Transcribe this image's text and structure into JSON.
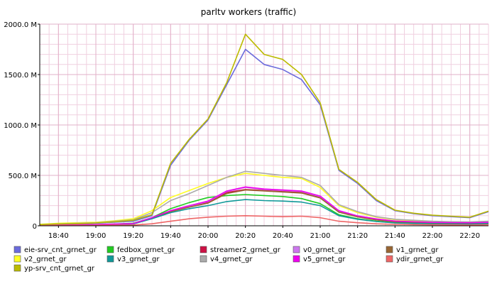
{
  "chart_data": {
    "type": "line",
    "title": "parltv workers (traffic)",
    "xlabel": "",
    "ylabel": "",
    "x_unit": "time (HH:MM)",
    "x": [
      "18:30",
      "18:40",
      "18:50",
      "19:00",
      "19:10",
      "19:20",
      "19:30",
      "19:40",
      "19:50",
      "20:00",
      "20:10",
      "20:20",
      "20:30",
      "20:40",
      "20:50",
      "21:00",
      "21:10",
      "21:20",
      "21:30",
      "21:40",
      "21:50",
      "22:00",
      "22:10",
      "22:20",
      "22:30"
    ],
    "x_tick_labels": [
      "18:40",
      "19:00",
      "19:20",
      "19:40",
      "20:00",
      "20:20",
      "20:40",
      "21:00",
      "21:20",
      "21:40",
      "22:00",
      "22:20"
    ],
    "ylim": [
      0,
      2000
    ],
    "y_unit": "M",
    "y_tick_labels": [
      "0",
      "500.0 M",
      "1000.0 M",
      "1500.0 M",
      "2000.0 M"
    ],
    "grid": true,
    "legend_position": "bottom",
    "series": [
      {
        "name": "eie-srv_cnt_grnet_gr",
        "color": "#6b6bdc",
        "values": [
          10,
          15,
          20,
          25,
          35,
          45,
          100,
          600,
          850,
          1050,
          1400,
          1750,
          1600,
          1550,
          1450,
          1200,
          550,
          420,
          250,
          150,
          120,
          100,
          90,
          80,
          140
        ]
      },
      {
        "name": "fedbox_grnet_gr",
        "color": "#22cc22",
        "values": [
          5,
          8,
          10,
          12,
          18,
          25,
          80,
          170,
          230,
          280,
          300,
          310,
          300,
          290,
          270,
          220,
          110,
          70,
          45,
          30,
          25,
          20,
          18,
          16,
          20
        ]
      },
      {
        "name": "streamer2_grnet_gr",
        "color": "#cc1144",
        "values": [
          3,
          6,
          8,
          10,
          15,
          20,
          75,
          145,
          190,
          230,
          330,
          360,
          350,
          340,
          330,
          280,
          140,
          90,
          60,
          40,
          35,
          30,
          28,
          26,
          30
        ]
      },
      {
        "name": "v0_grnet_gr",
        "color": "#cc77ee",
        "values": [
          4,
          7,
          10,
          12,
          17,
          22,
          78,
          148,
          195,
          240,
          340,
          380,
          360,
          350,
          340,
          290,
          145,
          95,
          65,
          45,
          38,
          32,
          30,
          28,
          32
        ]
      },
      {
        "name": "v1_grnet_gr",
        "color": "#996633",
        "values": [
          3,
          5,
          8,
          10,
          14,
          20,
          72,
          140,
          185,
          225,
          320,
          355,
          345,
          335,
          325,
          275,
          135,
          88,
          58,
          40,
          34,
          28,
          26,
          24,
          28
        ]
      },
      {
        "name": "v2_grnet_gr",
        "color": "#ffff22",
        "values": [
          15,
          25,
          30,
          35,
          50,
          70,
          150,
          280,
          350,
          420,
          480,
          520,
          500,
          480,
          470,
          380,
          200,
          130,
          85,
          60,
          50,
          40,
          38,
          35,
          40
        ]
      },
      {
        "name": "v3_grnet_gr",
        "color": "#119999",
        "values": [
          3,
          5,
          7,
          9,
          12,
          18,
          70,
          130,
          170,
          200,
          240,
          260,
          250,
          245,
          235,
          200,
          100,
          65,
          42,
          28,
          24,
          20,
          18,
          16,
          22
        ]
      },
      {
        "name": "v4_grnet_gr",
        "color": "#aaaaaa",
        "values": [
          12,
          20,
          25,
          30,
          45,
          60,
          130,
          250,
          320,
          400,
          480,
          540,
          520,
          500,
          480,
          400,
          210,
          140,
          90,
          65,
          55,
          45,
          40,
          38,
          45
        ]
      },
      {
        "name": "v5_grnet_gr",
        "color": "#ee00ee",
        "values": [
          4,
          7,
          10,
          12,
          17,
          22,
          80,
          150,
          200,
          245,
          345,
          385,
          365,
          355,
          345,
          295,
          150,
          98,
          68,
          47,
          40,
          34,
          32,
          30,
          34
        ]
      },
      {
        "name": "ydir_grnet_gr",
        "color": "#ee6666",
        "values": [
          2,
          3,
          4,
          5,
          6,
          8,
          20,
          45,
          70,
          85,
          95,
          100,
          95,
          90,
          95,
          80,
          45,
          30,
          20,
          14,
          12,
          10,
          9,
          8,
          10
        ]
      },
      {
        "name": "yp-srv_cnt_grnet_gr",
        "color": "#bbbb00",
        "values": [
          12,
          18,
          22,
          28,
          40,
          55,
          110,
          620,
          860,
          1060,
          1420,
          1900,
          1700,
          1650,
          1500,
          1220,
          560,
          430,
          260,
          155,
          125,
          105,
          95,
          85,
          145
        ]
      }
    ]
  }
}
